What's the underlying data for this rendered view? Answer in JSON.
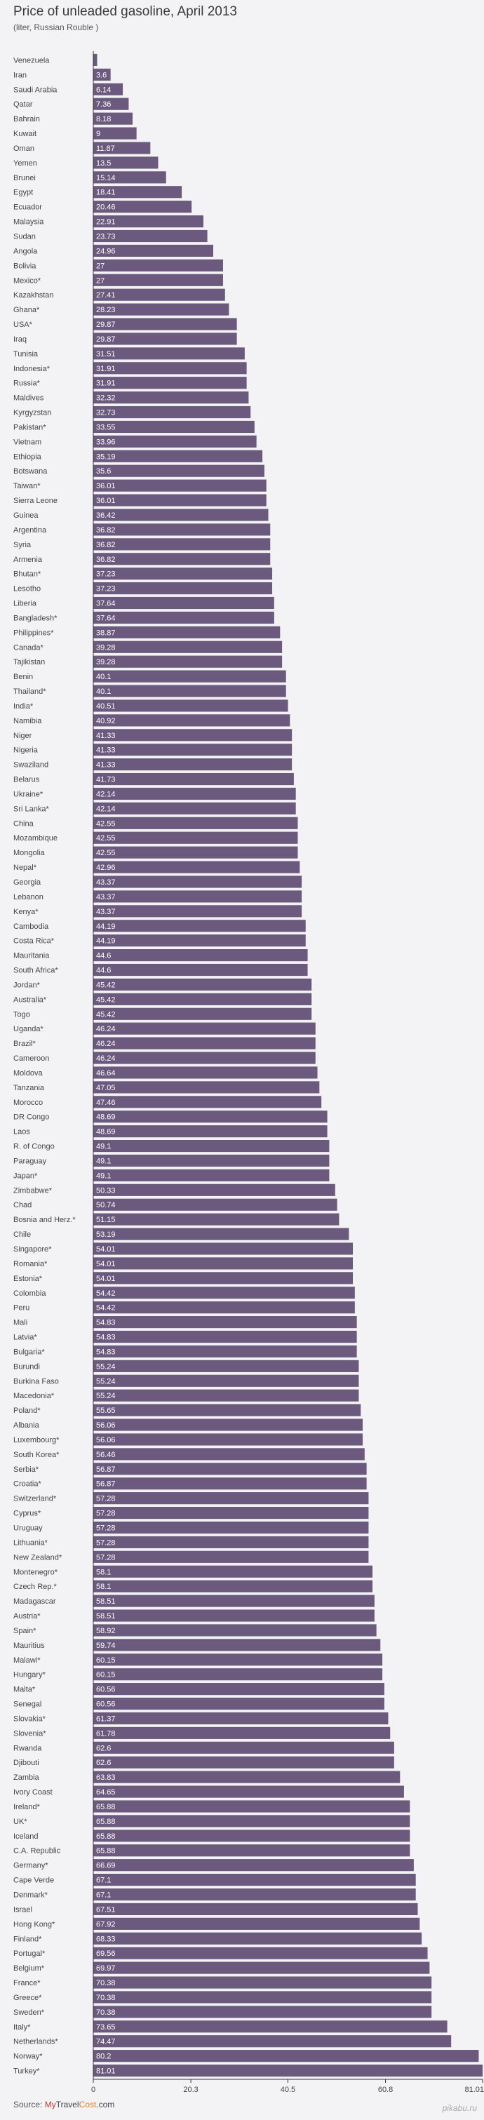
{
  "header": {
    "title": "Price of unleaded gasoline, April 2013",
    "subtitle": "(liter, Russian Rouble )"
  },
  "footer": {
    "source_label": "Source:",
    "brand_part1": "My",
    "brand_part2": "Travel",
    "brand_part3": "Cost",
    "brand_part4": ".com",
    "watermark": "pikabu.ru"
  },
  "colors": {
    "bar": "#6b5a7e",
    "axis": "#333333",
    "label": "#444444",
    "value_text": "#ffffff"
  },
  "chart_data": {
    "type": "bar",
    "orientation": "horizontal",
    "title": "Price of unleaded gasoline, April 2013",
    "subtitle": "(liter, Russian Rouble )",
    "xlabel": "",
    "ylabel": "",
    "xlim": [
      0,
      81.01
    ],
    "xticks": [
      "0",
      "20.3",
      "40.5",
      "60.8",
      "81.01"
    ],
    "categories": [
      "Venezuela",
      "Iran",
      "Saudi Arabia",
      "Qatar",
      "Bahrain",
      "Kuwait",
      "Oman",
      "Yemen",
      "Brunei",
      "Egypt",
      "Ecuador",
      "Malaysia",
      "Sudan",
      "Angola",
      "Bolivia",
      "Mexico*",
      "Kazakhstan",
      "Ghana*",
      "USA*",
      "Iraq",
      "Tunisia",
      "Indonesia*",
      "Russia*",
      "Maldives",
      "Kyrgyzstan",
      "Pakistan*",
      "Vietnam",
      "Ethiopia",
      "Botswana",
      "Taiwan*",
      "Sierra Leone",
      "Guinea",
      "Argentina",
      "Syria",
      "Armenia",
      "Bhutan*",
      "Lesotho",
      "Liberia",
      "Bangladesh*",
      "Philippines*",
      "Canada*",
      "Tajikistan",
      "Benin",
      "Thailand*",
      "India*",
      "Namibia",
      "Niger",
      "Nigeria",
      "Swaziland",
      "Belarus",
      "Ukraine*",
      "Sri Lanka*",
      "China",
      "Mozambique",
      "Mongolia",
      "Nepal*",
      "Georgia",
      "Lebanon",
      "Kenya*",
      "Cambodia",
      "Costa Rica*",
      "Mauritania",
      "South Africa*",
      "Jordan*",
      "Australia*",
      "Togo",
      "Uganda*",
      "Brazil*",
      "Cameroon",
      "Moldova",
      "Tanzania",
      "Morocco",
      "DR Congo",
      "Laos",
      "R. of Congo",
      "Paraguay",
      "Japan*",
      "Zimbabwe*",
      "Chad",
      "Bosnia and Herz.*",
      "Chile",
      "Singapore*",
      "Romania*",
      "Estonia*",
      "Colombia",
      "Peru",
      "Mali",
      "Latvia*",
      "Bulgaria*",
      "Burundi",
      "Burkina Faso",
      "Macedonia*",
      "Poland*",
      "Albania",
      "Luxembourg*",
      "South Korea*",
      "Serbia*",
      "Croatia*",
      "Switzerland*",
      "Cyprus*",
      "Uruguay",
      "Lithuania*",
      "New Zealand*",
      "Montenegro*",
      "Czech Rep.*",
      "Madagascar",
      "Austria*",
      "Spain*",
      "Mauritius",
      "Malawi*",
      "Hungary*",
      "Malta*",
      "Senegal",
      "Slovakia*",
      "Slovenia*",
      "Rwanda",
      "Djibouti",
      "Zambia",
      "Ivory Coast",
      "Ireland*",
      "UK*",
      "Iceland",
      "C.A. Republic",
      "Germany*",
      "Cape Verde",
      "Denmark*",
      "Israel",
      "Hong Kong*",
      "Finland*",
      "Portugal*",
      "Belgium*",
      "France*",
      "Greece*",
      "Sweden*",
      "Italy*",
      "Netherlands*",
      "Norway*",
      "Turkey*"
    ],
    "values": [
      0.8,
      3.6,
      6.14,
      7.36,
      8.18,
      9,
      11.87,
      13.5,
      15.14,
      18.41,
      20.46,
      22.91,
      23.73,
      24.96,
      27,
      27,
      27.41,
      28.23,
      29.87,
      29.87,
      31.51,
      31.91,
      31.91,
      32.32,
      32.73,
      33.55,
      33.96,
      35.19,
      35.6,
      36.01,
      36.01,
      36.42,
      36.82,
      36.82,
      36.82,
      37.23,
      37.23,
      37.64,
      37.64,
      38.87,
      39.28,
      39.28,
      40.1,
      40.1,
      40.51,
      40.92,
      41.33,
      41.33,
      41.33,
      41.73,
      42.14,
      42.14,
      42.55,
      42.55,
      42.55,
      42.96,
      43.37,
      43.37,
      43.37,
      44.19,
      44.19,
      44.6,
      44.6,
      45.42,
      45.42,
      45.42,
      46.24,
      46.24,
      46.24,
      46.64,
      47.05,
      47.46,
      48.69,
      48.69,
      49.1,
      49.1,
      49.1,
      50.33,
      50.74,
      51.15,
      53.19,
      54.01,
      54.01,
      54.01,
      54.42,
      54.42,
      54.83,
      54.83,
      54.83,
      55.24,
      55.24,
      55.24,
      55.65,
      56.06,
      56.06,
      56.46,
      56.87,
      56.87,
      57.28,
      57.28,
      57.28,
      57.28,
      57.28,
      58.1,
      58.1,
      58.51,
      58.51,
      58.92,
      59.74,
      60.15,
      60.15,
      60.56,
      60.56,
      61.37,
      61.78,
      62.6,
      62.6,
      63.83,
      64.65,
      65.88,
      65.88,
      65.88,
      65.88,
      66.69,
      67.1,
      67.1,
      67.51,
      67.92,
      68.33,
      69.56,
      69.97,
      70.38,
      70.38,
      70.38,
      73.65,
      74.47,
      80.2,
      81.01
    ],
    "labels": [
      "",
      "3.6",
      "6.14",
      "7.36",
      "8.18",
      "9",
      "11.87",
      "13.5",
      "15.14",
      "18.41",
      "20.46",
      "22.91",
      "23.73",
      "24.96",
      "27",
      "27",
      "27.41",
      "28.23",
      "29.87",
      "29.87",
      "31.51",
      "31.91",
      "31.91",
      "32.32",
      "32.73",
      "33.55",
      "33.96",
      "35.19",
      "35.6",
      "36.01",
      "36.01",
      "36.42",
      "36.82",
      "36.82",
      "36.82",
      "37.23",
      "37.23",
      "37.64",
      "37.64",
      "38.87",
      "39.28",
      "39.28",
      "40.1",
      "40.1",
      "40.51",
      "40.92",
      "41.33",
      "41.33",
      "41.33",
      "41.73",
      "42.14",
      "42.14",
      "42.55",
      "42.55",
      "42.55",
      "42.96",
      "43.37",
      "43.37",
      "43.37",
      "44.19",
      "44.19",
      "44.6",
      "44.6",
      "45.42",
      "45.42",
      "45.42",
      "46.24",
      "46.24",
      "46.24",
      "46.64",
      "47.05",
      "47.46",
      "48.69",
      "48.69",
      "49.1",
      "49.1",
      "49.1",
      "50.33",
      "50.74",
      "51.15",
      "53.19",
      "54.01",
      "54.01",
      "54.01",
      "54.42",
      "54.42",
      "54.83",
      "54.83",
      "54.83",
      "55.24",
      "55.24",
      "55.24",
      "55.65",
      "56.06",
      "56.06",
      "56.46",
      "56.87",
      "56.87",
      "57.28",
      "57.28",
      "57.28",
      "57.28",
      "57.28",
      "58.1",
      "58.1",
      "58.51",
      "58.51",
      "58.92",
      "59.74",
      "60.15",
      "60.15",
      "60.56",
      "60.56",
      "61.37",
      "61.78",
      "62.6",
      "62.6",
      "63.83",
      "64.65",
      "65.88",
      "65.88",
      "65.88",
      "65.88",
      "66.69",
      "67.1",
      "67.1",
      "67.51",
      "67.92",
      "68.33",
      "69.56",
      "69.97",
      "70.38",
      "70.38",
      "70.38",
      "73.65",
      "74.47",
      "80.2",
      "81.01"
    ],
    "grid": false,
    "legend": "none"
  }
}
